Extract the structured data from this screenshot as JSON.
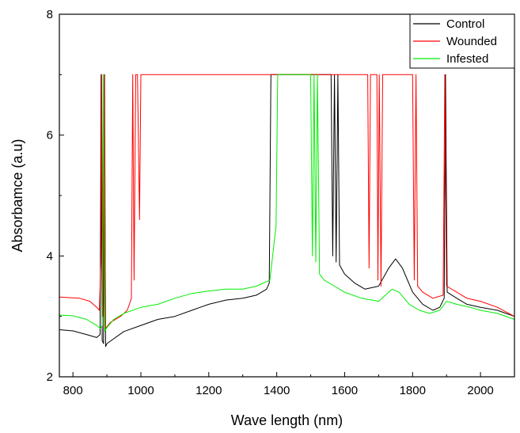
{
  "chart_data": {
    "type": "line",
    "title": "",
    "xlabel": "Wave length (nm)",
    "ylabel": "Absorbamce (a.u)",
    "xlim": [
      760,
      2100
    ],
    "ylim": [
      2,
      8
    ],
    "x_ticks": [
      800,
      1000,
      1200,
      1400,
      1600,
      1800,
      2000
    ],
    "y_ticks": [
      2,
      4,
      6,
      8
    ],
    "grid": false,
    "legend_position": "top-right",
    "series": [
      {
        "name": "Control",
        "color": "#000000",
        "points": [
          [
            760,
            2.78
          ],
          [
            800,
            2.76
          ],
          [
            840,
            2.7
          ],
          [
            870,
            2.65
          ],
          [
            880,
            2.7
          ],
          [
            883,
            7.0
          ],
          [
            886,
            2.6
          ],
          [
            890,
            2.55
          ],
          [
            893,
            7.0
          ],
          [
            896,
            2.5
          ],
          [
            900,
            2.55
          ],
          [
            950,
            2.75
          ],
          [
            1000,
            2.85
          ],
          [
            1050,
            2.95
          ],
          [
            1100,
            3.0
          ],
          [
            1150,
            3.1
          ],
          [
            1200,
            3.2
          ],
          [
            1250,
            3.27
          ],
          [
            1300,
            3.3
          ],
          [
            1340,
            3.35
          ],
          [
            1370,
            3.45
          ],
          [
            1378,
            3.55
          ],
          [
            1383,
            7.0
          ],
          [
            1560,
            7.0
          ],
          [
            1565,
            4.0
          ],
          [
            1570,
            7.0
          ],
          [
            1575,
            3.9
          ],
          [
            1580,
            7.0
          ],
          [
            1585,
            3.85
          ],
          [
            1600,
            3.7
          ],
          [
            1630,
            3.55
          ],
          [
            1660,
            3.45
          ],
          [
            1700,
            3.5
          ],
          [
            1730,
            3.8
          ],
          [
            1750,
            3.95
          ],
          [
            1770,
            3.8
          ],
          [
            1800,
            3.4
          ],
          [
            1830,
            3.2
          ],
          [
            1860,
            3.1
          ],
          [
            1880,
            3.15
          ],
          [
            1893,
            3.3
          ],
          [
            1897,
            7.0
          ],
          [
            1902,
            3.4
          ],
          [
            1930,
            3.3
          ],
          [
            1960,
            3.2
          ],
          [
            2000,
            3.15
          ],
          [
            2050,
            3.1
          ],
          [
            2100,
            3.0
          ]
        ]
      },
      {
        "name": "Wounded",
        "color": "#ff0000",
        "points": [
          [
            760,
            3.32
          ],
          [
            820,
            3.3
          ],
          [
            850,
            3.25
          ],
          [
            870,
            3.15
          ],
          [
            878,
            3.1
          ],
          [
            882,
            3.9
          ],
          [
            885,
            7.0
          ],
          [
            888,
            3.0
          ],
          [
            892,
            7.0
          ],
          [
            896,
            2.8
          ],
          [
            910,
            2.9
          ],
          [
            940,
            3.0
          ],
          [
            960,
            3.1
          ],
          [
            972,
            3.3
          ],
          [
            976,
            7.0
          ],
          [
            980,
            3.6
          ],
          [
            985,
            7.0
          ],
          [
            990,
            7.0
          ],
          [
            996,
            4.6
          ],
          [
            1000,
            7.0
          ],
          [
            1660,
            7.0
          ],
          [
            1668,
            7.0
          ],
          [
            1672,
            3.8
          ],
          [
            1676,
            7.0
          ],
          [
            1695,
            7.0
          ],
          [
            1698,
            3.6
          ],
          [
            1702,
            7.0
          ],
          [
            1707,
            3.5
          ],
          [
            1712,
            7.0
          ],
          [
            1800,
            7.0
          ],
          [
            1805,
            3.6
          ],
          [
            1810,
            7.0
          ],
          [
            1815,
            3.5
          ],
          [
            1830,
            3.4
          ],
          [
            1860,
            3.3
          ],
          [
            1890,
            3.35
          ],
          [
            1895,
            7.0
          ],
          [
            1900,
            3.5
          ],
          [
            1930,
            3.4
          ],
          [
            1960,
            3.3
          ],
          [
            2000,
            3.25
          ],
          [
            2050,
            3.15
          ],
          [
            2100,
            3.0
          ]
        ]
      },
      {
        "name": "Infested",
        "color": "#00ee00",
        "points": [
          [
            760,
            3.02
          ],
          [
            800,
            3.01
          ],
          [
            840,
            2.95
          ],
          [
            870,
            2.85
          ],
          [
            880,
            2.8
          ],
          [
            886,
            2.85
          ],
          [
            890,
            7.0
          ],
          [
            894,
            2.75
          ],
          [
            898,
            2.8
          ],
          [
            920,
            2.95
          ],
          [
            950,
            3.05
          ],
          [
            1000,
            3.15
          ],
          [
            1050,
            3.2
          ],
          [
            1100,
            3.3
          ],
          [
            1150,
            3.38
          ],
          [
            1200,
            3.42
          ],
          [
            1250,
            3.45
          ],
          [
            1300,
            3.45
          ],
          [
            1340,
            3.5
          ],
          [
            1380,
            3.6
          ],
          [
            1392,
            4.2
          ],
          [
            1398,
            4.5
          ],
          [
            1403,
            7.0
          ],
          [
            1500,
            7.0
          ],
          [
            1505,
            4.0
          ],
          [
            1510,
            7.0
          ],
          [
            1515,
            3.9
          ],
          [
            1520,
            7.0
          ],
          [
            1526,
            3.7
          ],
          [
            1540,
            3.6
          ],
          [
            1570,
            3.5
          ],
          [
            1600,
            3.4
          ],
          [
            1650,
            3.3
          ],
          [
            1700,
            3.25
          ],
          [
            1740,
            3.45
          ],
          [
            1760,
            3.4
          ],
          [
            1790,
            3.2
          ],
          [
            1820,
            3.1
          ],
          [
            1850,
            3.05
          ],
          [
            1880,
            3.1
          ],
          [
            1900,
            3.25
          ],
          [
            1930,
            3.2
          ],
          [
            1970,
            3.15
          ],
          [
            2000,
            3.1
          ],
          [
            2050,
            3.05
          ],
          [
            2100,
            2.95
          ]
        ]
      }
    ]
  }
}
